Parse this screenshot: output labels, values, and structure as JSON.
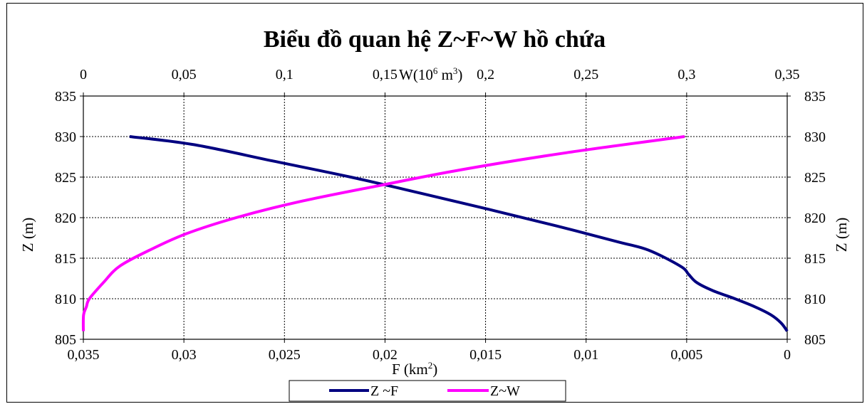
{
  "chart_data": {
    "type": "line",
    "title": "Biểu đồ quan hệ Z~F~W  hồ chứa",
    "top_axis": {
      "label_main": "W(10",
      "label_sup": "6",
      "label_unit": " m",
      "label_unit_sup": "3",
      "label_close": ")",
      "range": [
        0,
        0.35
      ],
      "ticks": [
        "0",
        "0,05",
        "0,1",
        "0,15",
        "0,2",
        "0,25",
        "0,3",
        "0,35"
      ]
    },
    "bottom_axis": {
      "label_main": "F (km",
      "label_sup": "2",
      "label_close": ")",
      "range": [
        0.035,
        0
      ],
      "reversed": true,
      "ticks": [
        "0,035",
        "0,03",
        "0,025",
        "0,02",
        "0,015",
        "0,01",
        "0,005",
        "0"
      ]
    },
    "left_axis": {
      "label": "Z (m)",
      "range": [
        805,
        835
      ],
      "ticks": [
        "805",
        "810",
        "815",
        "820",
        "825",
        "830",
        "835"
      ]
    },
    "right_axis": {
      "label": "Z (m)",
      "range": [
        805,
        835
      ],
      "ticks": [
        "805",
        "810",
        "815",
        "820",
        "825",
        "830",
        "835"
      ]
    },
    "grid": true,
    "legend_position": "bottom",
    "series": [
      {
        "name": "Z ~F",
        "axis": "F",
        "color": "#000080",
        "points": [
          {
            "x": 0.0,
            "z": 806
          },
          {
            "x": 0.0003,
            "z": 807
          },
          {
            "x": 0.0008,
            "z": 808
          },
          {
            "x": 0.0016,
            "z": 809
          },
          {
            "x": 0.0026,
            "z": 810
          },
          {
            "x": 0.0037,
            "z": 811
          },
          {
            "x": 0.0045,
            "z": 812
          },
          {
            "x": 0.0049,
            "z": 813
          },
          {
            "x": 0.0053,
            "z": 814
          },
          {
            "x": 0.0069,
            "z": 816
          },
          {
            "x": 0.0084,
            "z": 817
          },
          {
            "x": 0.0115,
            "z": 819
          },
          {
            "x": 0.0148,
            "z": 821
          },
          {
            "x": 0.0182,
            "z": 823
          },
          {
            "x": 0.0217,
            "z": 825
          },
          {
            "x": 0.0256,
            "z": 827
          },
          {
            "x": 0.0295,
            "z": 829
          },
          {
            "x": 0.0327,
            "z": 830
          }
        ]
      },
      {
        "name": "Z~W",
        "axis": "W",
        "color": "#ff00ff",
        "points": [
          {
            "x": 0.0,
            "z": 806
          },
          {
            "x": 0.0001,
            "z": 808
          },
          {
            "x": 0.0015,
            "z": 809
          },
          {
            "x": 0.003,
            "z": 810
          },
          {
            "x": 0.01,
            "z": 812
          },
          {
            "x": 0.018,
            "z": 814
          },
          {
            "x": 0.033,
            "z": 816
          },
          {
            "x": 0.051,
            "z": 818
          },
          {
            "x": 0.076,
            "z": 820
          },
          {
            "x": 0.108,
            "z": 822
          },
          {
            "x": 0.148,
            "z": 824
          },
          {
            "x": 0.19,
            "z": 826
          },
          {
            "x": 0.24,
            "z": 828
          },
          {
            "x": 0.299,
            "z": 830
          }
        ]
      }
    ]
  }
}
